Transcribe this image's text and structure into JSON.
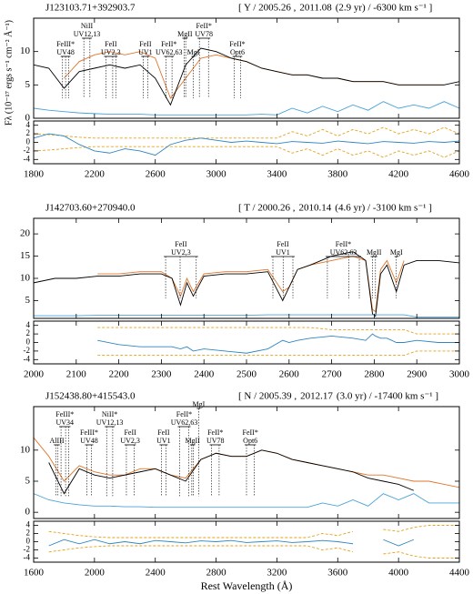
{
  "chart_data": [
    {
      "type": "line",
      "title": "J123103.71+392903.7",
      "subtitle": {
        "prefix": "[ Y / 2005.26 ,",
        "epoch2": "2011.08",
        "suffix": "(2.9 yr) / -6300 km s⁻¹ ]",
        "highlight_color": "#e0752a"
      },
      "ylabel": "Fλ (10⁻¹⁷ ergs s⁻¹ cm⁻² Å⁻¹)",
      "xlim": [
        1800,
        4600
      ],
      "xticks": [
        1800,
        2200,
        2600,
        3000,
        3400,
        3800,
        4200,
        4600
      ],
      "ylim": [
        0,
        15
      ],
      "yticks": [
        0,
        5,
        10
      ],
      "x": [
        1800,
        1900,
        2000,
        2100,
        2200,
        2300,
        2400,
        2500,
        2600,
        2700,
        2800,
        2900,
        3000,
        3100,
        3200,
        3300,
        3400,
        3500,
        3600,
        3700,
        3800,
        3900,
        4000,
        4100,
        4200,
        4300,
        4400,
        4500,
        4600
      ],
      "series": [
        {
          "color": "#e0752a",
          "values": [
            null,
            null,
            6,
            8.5,
            9.5,
            10,
            9.5,
            10,
            9,
            3,
            6,
            9,
            9.5,
            9,
            8.5,
            7.5,
            7,
            6.5,
            6.5,
            6,
            6,
            5.5,
            5.5,
            5.5,
            5,
            5,
            5,
            5,
            null
          ]
        },
        {
          "color": "#000000",
          "values": [
            8,
            7.5,
            4.5,
            7,
            7.5,
            8,
            7.5,
            8,
            6,
            2,
            8,
            10.5,
            10,
            9,
            8.5,
            7.5,
            7,
            6.5,
            6.5,
            6,
            6,
            5.5,
            5.5,
            5.5,
            5,
            5,
            5,
            5,
            5.5
          ]
        },
        {
          "color": "#4aa3d8",
          "values": [
            1.5,
            1.2,
            1,
            0.8,
            0.7,
            0.6,
            0.6,
            0.6,
            0.5,
            0.5,
            0.5,
            0.5,
            0.5,
            0.5,
            0.5,
            0.6,
            0.5,
            1.5,
            0.8,
            1.8,
            1,
            2,
            1.2,
            2.5,
            1.5,
            2,
            1.5,
            2.5,
            1.5
          ]
        }
      ],
      "residual": {
        "ylim": [
          -5,
          5
        ],
        "yticks": [
          -4,
          -2,
          0,
          2,
          4
        ],
        "series": [
          {
            "color": "#e5a21a",
            "linestyle": "dashed",
            "values": [
              2,
              1.8,
              1.5,
              1.2,
              1,
              1,
              1,
              1,
              1,
              1,
              1,
              1,
              1,
              1,
              1,
              1,
              1,
              2.5,
              1.5,
              3,
              1.5,
              3,
              2,
              3.5,
              2,
              3,
              2,
              3.5,
              2
            ]
          },
          {
            "color": "#e5a21a",
            "linestyle": "dashed",
            "values": [
              -2,
              -1.8,
              -1.5,
              -1.2,
              -1,
              -1,
              -1,
              -1,
              -1,
              -1,
              -1,
              -1,
              -1,
              -1,
              -1,
              -1,
              -1,
              -2.5,
              -1.5,
              -3,
              -1.5,
              -3,
              -2,
              -3.5,
              -2,
              -3,
              -2,
              -3.5,
              -2
            ]
          },
          {
            "color": "#2f86c0",
            "values": [
              1,
              2,
              1.5,
              -0.5,
              -2,
              -2.5,
              -1.5,
              -2,
              -3,
              -0.5,
              0.5,
              1,
              0.5,
              0,
              0.3,
              0,
              -0.3,
              0.2,
              0,
              -0.2,
              0.3,
              0,
              -0.3,
              0.2,
              0,
              -0.2,
              0.2,
              0,
              0.3
            ]
          }
        ]
      },
      "line_ids": [
        {
          "label": [
            "FeIII*",
            "UV48"
          ],
          "x": [
            1990,
            2010,
            2030
          ]
        },
        {
          "label": [
            "NiII",
            "UV12,13"
          ],
          "x": [
            2130,
            2170
          ]
        },
        {
          "label": [
            "FeII",
            "UV2,3"
          ],
          "x": [
            2275,
            2320,
            2340
          ]
        },
        {
          "label": [
            "FeII",
            "UV1"
          ],
          "x": [
            2520,
            2550
          ]
        },
        {
          "label": [
            "FeII*",
            "UV62,63"
          ],
          "x": [
            2670,
            2710
          ]
        },
        {
          "label": [
            "MgII"
          ],
          "x": [
            2790,
            2800
          ]
        },
        {
          "label": [
            "MgI"
          ],
          "x": [
            2850
          ]
        },
        {
          "label": [
            "FeII*",
            "UV78"
          ],
          "x": [
            2890,
            2950
          ]
        },
        {
          "label": [
            "FeII*",
            "Opt6"
          ],
          "x": [
            3120,
            3160
          ]
        }
      ]
    },
    {
      "type": "line",
      "title": "J142703.60+270940.0",
      "subtitle": {
        "prefix": "[ T / 2000.26 ,",
        "epoch2": "2010.14",
        "suffix": "(4.6 yr) / -3100 km s⁻¹ ]",
        "highlight_color": "#e0752a"
      },
      "xlim": [
        2000,
        3000
      ],
      "xticks": [
        2000,
        2100,
        2200,
        2300,
        2400,
        2500,
        2600,
        2700,
        2800,
        2900,
        3000
      ],
      "ylim": [
        1,
        23.5
      ],
      "yticks": [
        5,
        10,
        15,
        20
      ],
      "x": [
        2000,
        2050,
        2100,
        2150,
        2200,
        2250,
        2300,
        2325,
        2345,
        2360,
        2375,
        2400,
        2450,
        2500,
        2550,
        2585,
        2600,
        2620,
        2650,
        2700,
        2750,
        2780,
        2796,
        2803,
        2815,
        2830,
        2852,
        2870,
        2900,
        2950,
        3000
      ],
      "series": [
        {
          "color": "#e0752a",
          "values": [
            null,
            null,
            null,
            11,
            11,
            11.5,
            11.5,
            10,
            6,
            10,
            7,
            11,
            11.5,
            11.5,
            12,
            7,
            8,
            12,
            13,
            14,
            15,
            14,
            3,
            2.5,
            12,
            14,
            9,
            14,
            null,
            null,
            null
          ]
        },
        {
          "color": "#000000",
          "values": [
            9,
            10,
            10,
            10.5,
            10.5,
            11,
            11,
            10,
            4,
            9,
            6,
            10.5,
            11,
            11,
            11.5,
            5,
            8,
            12,
            13,
            15,
            16,
            14,
            2,
            1.5,
            11,
            13,
            7,
            13,
            14,
            14,
            13.5
          ]
        },
        {
          "color": "#4aa3d8",
          "values": [
            1.6,
            1.6,
            1.6,
            1.7,
            1.7,
            1.7,
            1.7,
            1.7,
            1.7,
            1.7,
            1.7,
            1.7,
            1.7,
            1.7,
            1.8,
            1.8,
            1.8,
            1.8,
            1.8,
            1.8,
            1.8,
            1.8,
            1.8,
            1.8,
            1.8,
            1.8,
            1.8,
            1.8,
            1.3,
            1.3,
            1.3
          ]
        }
      ],
      "residual": {
        "ylim": [
          -5,
          5
        ],
        "yticks": [
          -4,
          -2,
          0,
          2,
          4
        ],
        "series": [
          {
            "color": "#e5a21a",
            "linestyle": "dashed",
            "values": [
              null,
              null,
              null,
              3.5,
              3.5,
              3.5,
              3.5,
              3.5,
              3.5,
              3.5,
              3.5,
              3.5,
              3.5,
              3.5,
              3.5,
              3.5,
              3.5,
              3.5,
              3.5,
              3,
              3,
              3,
              3,
              3,
              3,
              3,
              3,
              3,
              2,
              2,
              2
            ]
          },
          {
            "color": "#e5a21a",
            "linestyle": "dashed",
            "values": [
              null,
              null,
              null,
              -3,
              -3,
              -3,
              -3,
              -3,
              -3,
              -3,
              -3,
              -3,
              -3,
              -3,
              -3,
              -3,
              -3,
              -3,
              -3,
              -3,
              -3,
              -3,
              -3,
              -3,
              -3,
              -3,
              -3,
              -3,
              -2,
              -2,
              -2
            ]
          },
          {
            "color": "#2f86c0",
            "values": [
              null,
              null,
              null,
              0.5,
              -0.5,
              -1,
              -1,
              -1,
              -1.5,
              -1,
              -2,
              -1.5,
              -2,
              -2.5,
              -1.5,
              0.5,
              0,
              0.5,
              1,
              1.5,
              1,
              0.5,
              2,
              1.5,
              1,
              1,
              0,
              0,
              0.5,
              0,
              0
            ]
          }
        ]
      },
      "line_ids": [
        {
          "label": [
            "FeII",
            "UV2,3"
          ],
          "x": [
            2310,
            2344,
            2382
          ]
        },
        {
          "label": [
            "FeII",
            "UV1"
          ],
          "x": [
            2562,
            2586,
            2609
          ]
        },
        {
          "label": [
            "FeII*",
            "UV62,63"
          ],
          "x": [
            2690,
            2740,
            2765
          ]
        },
        {
          "label": [
            "MgII"
          ],
          "x": [
            2796,
            2803
          ]
        },
        {
          "label": [
            "MgI"
          ],
          "x": [
            2852
          ]
        }
      ]
    },
    {
      "type": "line",
      "title": "J152438.80+415543.0",
      "subtitle": {
        "prefix": "[ N / 2005.39 ,",
        "epoch2": "2012.17",
        "suffix": "(3.0 yr) / -17400 km s⁻¹ ]",
        "highlight_color": "#e0752a"
      },
      "xlabel": "Rest Wavelength (Å)",
      "xlim": [
        1600,
        4400
      ],
      "xticks": [
        1600,
        2000,
        2400,
        2800,
        3200,
        3600,
        4000,
        4400
      ],
      "ylim": [
        -1,
        17
      ],
      "yticks": [
        0,
        5,
        10
      ],
      "x": [
        1600,
        1700,
        1800,
        1900,
        2000,
        2100,
        2200,
        2300,
        2400,
        2500,
        2600,
        2700,
        2800,
        2900,
        3000,
        3100,
        3200,
        3300,
        3400,
        3500,
        3600,
        3700,
        3800,
        3900,
        4000,
        4100,
        4200,
        4300,
        4400
      ],
      "series": [
        {
          "color": "#e0752a",
          "values": [
            12,
            9,
            5,
            7.5,
            6.5,
            6,
            6,
            7,
            7,
            6,
            5.5,
            8.5,
            9.5,
            9,
            9,
            10,
            9.5,
            8.5,
            8,
            7.5,
            7,
            6.5,
            6,
            6,
            5.5,
            5,
            5,
            4.5,
            4
          ]
        },
        {
          "color": "#000000",
          "values": [
            null,
            8,
            3,
            7,
            6,
            5.5,
            6,
            6.5,
            7,
            6,
            5,
            8.5,
            9.5,
            9,
            9,
            10,
            9.5,
            8.5,
            8,
            7.5,
            7,
            6.5,
            5.5,
            5,
            4.5,
            3.5,
            null,
            null,
            null
          ]
        },
        {
          "color": "#4aa3d8",
          "values": [
            3,
            2,
            1.5,
            1.2,
            1,
            1,
            0.9,
            0.9,
            0.8,
            0.8,
            0.8,
            0.8,
            0.8,
            0.8,
            0.8,
            0.8,
            0.8,
            0.8,
            0.8,
            1.5,
            1,
            2,
            1,
            3,
            2,
            3,
            1.5,
            1.5,
            1.5
          ]
        }
      ],
      "residual": {
        "ylim": [
          -5,
          5
        ],
        "yticks": [
          -4,
          -2,
          0,
          2,
          4
        ],
        "series": [
          {
            "color": "#e5a21a",
            "linestyle": "dashed",
            "values": [
              null,
              2.5,
              2,
              1.5,
              1.2,
              1,
              1,
              1,
              1,
              1,
              1,
              1,
              1,
              1,
              1,
              1,
              1,
              1,
              1,
              2,
              1.5,
              2.5,
              null,
              3,
              2.5,
              3.5,
              4,
              4,
              4
            ]
          },
          {
            "color": "#e5a21a",
            "linestyle": "dashed",
            "values": [
              null,
              -2.5,
              -2,
              -1.5,
              -1.2,
              -1,
              -1,
              -1,
              -1,
              -1,
              -1,
              -1,
              -1,
              -1,
              -1,
              -1,
              -1,
              -1,
              -1,
              -2,
              -1.5,
              -2.5,
              null,
              -3,
              -2.5,
              -3.5,
              -4,
              -4,
              -4
            ]
          },
          {
            "color": "#2f86c0",
            "values": [
              null,
              -1,
              0.5,
              -0.5,
              0.5,
              -0.5,
              0,
              -0.5,
              0.3,
              0,
              -0.3,
              0.2,
              0,
              0.3,
              -0.2,
              0,
              0.2,
              -0.2,
              0,
              0.3,
              0,
              -0.5,
              null,
              0.5,
              -1,
              0.5,
              null,
              null,
              null
            ]
          }
        ]
      },
      "line_ids": [
        {
          "label": [
            "AlIII"
          ],
          "x": [
            1745,
            1760
          ]
        },
        {
          "label": [
            "FeIII*",
            "UV34"
          ],
          "x": [
            1780,
            1810,
            1830
          ]
        },
        {
          "label": [
            "FeIII*",
            "UV48"
          ],
          "x": [
            1950,
            1980
          ]
        },
        {
          "label": [
            "NiII*",
            "UV12,13"
          ],
          "x": [
            2080,
            2120
          ]
        },
        {
          "label": [
            "FeII",
            "UV2,3"
          ],
          "x": [
            2210,
            2260
          ]
        },
        {
          "label": [
            "FeII",
            "UV1"
          ],
          "x": [
            2440,
            2470
          ]
        },
        {
          "label": [
            "FeII*",
            "UV62,63"
          ],
          "x": [
            2560,
            2620
          ]
        },
        {
          "label": [
            "MgII"
          ],
          "x": [
            2640,
            2650
          ]
        },
        {
          "label": [
            "MgI"
          ],
          "x": [
            2685
          ]
        },
        {
          "label": [
            "FeII*",
            "UV78"
          ],
          "x": [
            2770,
            2820
          ]
        },
        {
          "label": [
            "FeII*",
            "Opt6"
          ],
          "x": [
            3000,
            3050
          ]
        }
      ]
    }
  ]
}
